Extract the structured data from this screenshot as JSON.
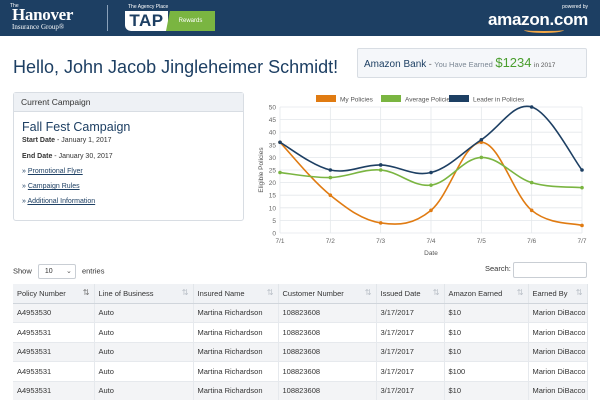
{
  "header": {
    "hanover_the": "The",
    "hanover_name": "Hanover",
    "hanover_group": "Insurance Group®",
    "tap_subtitle": "The Agency Place",
    "tap_label": "TAP",
    "tap_rewards": "Rewards",
    "powered_by": "powered by",
    "amazon_logo": "amazon.com"
  },
  "greeting": "Hello, John Jacob Jingleheimer Schmidt!",
  "bank": {
    "name": "Amazon Bank",
    "separator": "-",
    "earned_label": "You Have Earned",
    "amount": "$1234",
    "period": "in 2017"
  },
  "campaign": {
    "panel_title": "Current Campaign",
    "name": "Fall Fest Campaign",
    "start_label": "Start Date",
    "start_value": "- January 1, 2017",
    "end_label": "End Date",
    "end_value": "- January 30, 2017",
    "links": [
      "Promotional Flyer",
      "Campaign Rules",
      "Additional Information"
    ]
  },
  "chart_data": {
    "type": "line",
    "x": [
      "7/1",
      "7/2",
      "7/3",
      "7/4",
      "7/5",
      "7/6",
      "7/7"
    ],
    "series": [
      {
        "name": "My Policies",
        "values": [
          36,
          15,
          4,
          9,
          36,
          9,
          3
        ],
        "color": "#e07b12"
      },
      {
        "name": "Average Policies",
        "values": [
          24,
          22,
          25,
          19,
          30,
          20,
          18
        ],
        "color": "#7ab541"
      },
      {
        "name": "Leader in Policies",
        "values": [
          36,
          25,
          27,
          24,
          37,
          50,
          25
        ],
        "color": "#1d3f63"
      }
    ],
    "xlabel": "Date",
    "ylabel": "Eligible Policies",
    "ylim": [
      0,
      50
    ],
    "yticks": [
      0,
      5,
      10,
      15,
      20,
      25,
      30,
      35,
      40,
      45,
      50
    ],
    "grid": true,
    "legend": "top"
  },
  "table_controls": {
    "show_label": "Show",
    "entries_value": "10",
    "entries_label": "entries",
    "search_label": "Search:"
  },
  "table": {
    "columns": [
      "Policy Number",
      "Line of Business",
      "Insured Name",
      "Customer Number",
      "Issued Date",
      "Amazon Earned",
      "Earned By"
    ],
    "rows": [
      [
        "A4953530",
        "Auto",
        "Martina Richardson",
        "108823608",
        "3/17/2017",
        "$10",
        "Marion DiBacco"
      ],
      [
        "A4953531",
        "Auto",
        "Martina Richardson",
        "108823608",
        "3/17/2017",
        "$10",
        "Marion DiBacco"
      ],
      [
        "A4953531",
        "Auto",
        "Martina Richardson",
        "108823608",
        "3/17/2017",
        "$10",
        "Marion DiBacco"
      ],
      [
        "A4953531",
        "Auto",
        "Martina Richardson",
        "108823608",
        "3/17/2017",
        "$100",
        "Marion DiBacco"
      ],
      [
        "A4953531",
        "Auto",
        "Martina Richardson",
        "108823608",
        "3/17/2017",
        "$10",
        "Marion DiBacco"
      ]
    ]
  }
}
